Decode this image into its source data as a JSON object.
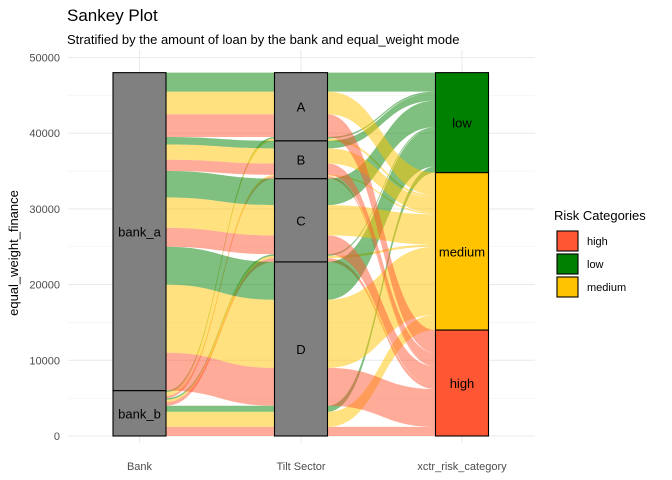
{
  "chart_data": {
    "type": "sankey",
    "title": "Sankey Plot",
    "subtitle": "Stratified by the amount of loan by the bank and equal_weight mode",
    "xlabel": "",
    "ylabel": "equal_weight_finance",
    "ylim": [
      0,
      50000
    ],
    "yticks": [
      0,
      10000,
      20000,
      30000,
      40000,
      50000
    ],
    "grid": true,
    "axes": [
      "Bank",
      "Tilt Sector",
      "xctr_risk_category"
    ],
    "strata": [
      [
        {
          "label": "bank_b",
          "value": 6000
        },
        {
          "label": "bank_a",
          "value": 42000
        }
      ],
      [
        {
          "label": "D",
          "value": 23000
        },
        {
          "label": "C",
          "value": 11000
        },
        {
          "label": "B",
          "value": 5000
        },
        {
          "label": "A",
          "value": 9000
        }
      ],
      [
        {
          "label": "high",
          "value": 14000,
          "color": "#FF5733"
        },
        {
          "label": "medium",
          "value": 20800,
          "color": "#FFC300"
        },
        {
          "label": "low",
          "value": 13200,
          "color": "#008000"
        }
      ]
    ],
    "flows": [
      {
        "bank": "bank_b",
        "sector": "D",
        "risk": "high",
        "value": 1200
      },
      {
        "bank": "bank_b",
        "sector": "D",
        "risk": "medium",
        "value": 2000
      },
      {
        "bank": "bank_b",
        "sector": "D",
        "risk": "low",
        "value": 800
      },
      {
        "bank": "bank_b",
        "sector": "C",
        "risk": "high",
        "value": 500
      },
      {
        "bank": "bank_b",
        "sector": "C",
        "risk": "medium",
        "value": 300
      },
      {
        "bank": "bank_b",
        "sector": "C",
        "risk": "low",
        "value": 200
      },
      {
        "bank": "bank_b",
        "sector": "B",
        "risk": "high",
        "value": 300
      },
      {
        "bank": "bank_b",
        "sector": "B",
        "risk": "medium",
        "value": 200
      },
      {
        "bank": "bank_b",
        "sector": "A",
        "risk": "medium",
        "value": 300
      },
      {
        "bank": "bank_b",
        "sector": "A",
        "risk": "low",
        "value": 200
      },
      {
        "bank": "bank_a",
        "sector": "D",
        "risk": "high",
        "value": 5000
      },
      {
        "bank": "bank_a",
        "sector": "D",
        "risk": "medium",
        "value": 9000
      },
      {
        "bank": "bank_a",
        "sector": "D",
        "risk": "low",
        "value": 5000
      },
      {
        "bank": "bank_a",
        "sector": "C",
        "risk": "high",
        "value": 2500
      },
      {
        "bank": "bank_a",
        "sector": "C",
        "risk": "medium",
        "value": 4000
      },
      {
        "bank": "bank_a",
        "sector": "C",
        "risk": "low",
        "value": 3500
      },
      {
        "bank": "bank_a",
        "sector": "B",
        "risk": "high",
        "value": 1500
      },
      {
        "bank": "bank_a",
        "sector": "B",
        "risk": "medium",
        "value": 2000
      },
      {
        "bank": "bank_a",
        "sector": "B",
        "risk": "low",
        "value": 1000
      },
      {
        "bank": "bank_a",
        "sector": "A",
        "risk": "high",
        "value": 3000
      },
      {
        "bank": "bank_a",
        "sector": "A",
        "risk": "medium",
        "value": 3000
      },
      {
        "bank": "bank_a",
        "sector": "A",
        "risk": "low",
        "value": 2500
      }
    ],
    "stratum_fill": "#808080",
    "flow_opacity": 0.5,
    "legend": {
      "title": "Risk Categories",
      "placement": "right",
      "entries": [
        {
          "label": "high",
          "color": "#FF5733"
        },
        {
          "label": "low",
          "color": "#008000"
        },
        {
          "label": "medium",
          "color": "#FFC300"
        }
      ]
    }
  }
}
